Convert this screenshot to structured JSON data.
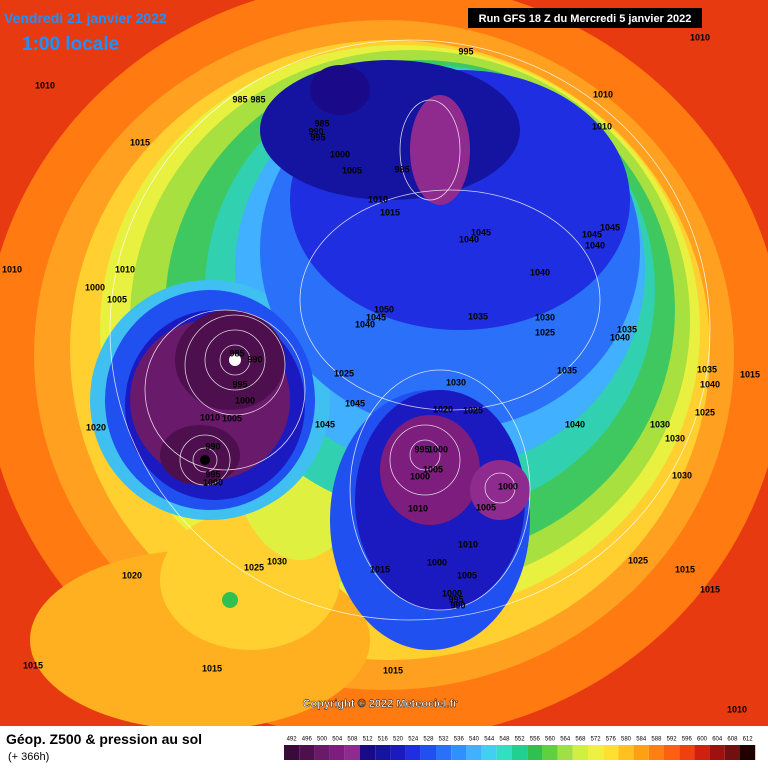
{
  "header": {
    "date": "Vendredi 21 janvier 2022",
    "time": "1:00 locale",
    "run": "Run GFS 18 Z du Mercredi 5 janvier 2022"
  },
  "copyright": "Copyright © 2022 Meteociel.fr",
  "footer": {
    "title": "Géop. Z500 & pression au sol",
    "lead": "(+ 366h)"
  },
  "legend": {
    "levels": [
      492,
      496,
      500,
      504,
      508,
      512,
      516,
      520,
      524,
      528,
      532,
      536,
      540,
      544,
      548,
      552,
      556,
      560,
      564,
      568,
      572,
      576,
      580,
      584,
      588,
      592,
      596,
      600,
      604,
      608,
      612
    ],
    "colors": [
      "#3a0a3a",
      "#4d0f4d",
      "#6a1a6a",
      "#7d1d7d",
      "#8f2a8f",
      "#1a0a8a",
      "#1414a0",
      "#1a1ac0",
      "#1e2ee0",
      "#2050f0",
      "#2a70f8",
      "#3090ff",
      "#40b0ff",
      "#40d0f0",
      "#30e0c0",
      "#20d090",
      "#30c050",
      "#60d040",
      "#a0e040",
      "#d0f040",
      "#f0f040",
      "#ffe030",
      "#ffc020",
      "#ffa010",
      "#ff8010",
      "#ff6010",
      "#f04010",
      "#d02010",
      "#a01010",
      "#701010",
      "#200000"
    ]
  },
  "isobars": [
    "995",
    "1010",
    "1010",
    "985",
    "985",
    "985",
    "990",
    "995",
    "1015",
    "1010",
    "1010",
    "1000",
    "1005",
    "985",
    "1010",
    "1015",
    "1045",
    "1040",
    "1045",
    "1045",
    "1040",
    "1010",
    "1010",
    "1000",
    "1005",
    "1040",
    "1050",
    "1045",
    "1040",
    "1035",
    "1030",
    "1025",
    "1035",
    "1040",
    "985",
    "990",
    "995",
    "1000",
    "1025",
    "1030",
    "1035",
    "1035",
    "1040",
    "1015",
    "1010",
    "1005",
    "1045",
    "1020",
    "1025",
    "1020",
    "1045",
    "1040",
    "1025",
    "1030",
    "1030",
    "990",
    "995",
    "1000",
    "995",
    "1000",
    "1005",
    "1000",
    "1030",
    "1000",
    "1005",
    "1010",
    "1010",
    "1030",
    "1025",
    "1000",
    "1015",
    "1025",
    "1005",
    "1020",
    "1015",
    "1015",
    "1000",
    "995",
    "990",
    "1015",
    "1015",
    "1015",
    "1010"
  ]
}
